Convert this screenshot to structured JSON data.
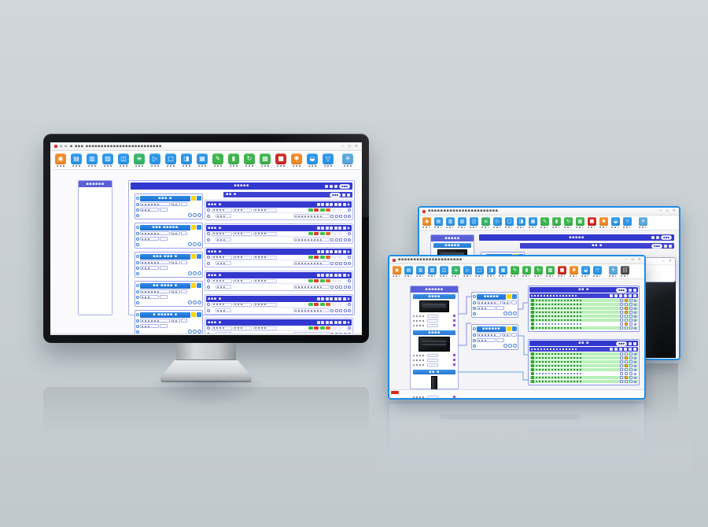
{
  "ui": {
    "controls": [
      "─",
      "▫",
      "✕"
    ],
    "tiny_dots": "▪ ▪"
  },
  "colors": {
    "accent_blue": "#1d8ce8",
    "indigo_bar": "#3338cf",
    "card_blue": "#1f7fe0",
    "flag_yellow": "#ffd400",
    "row_green": "#b9f0b9",
    "status_red": "#d42818",
    "chip_colors": [
      "#43c04a",
      "#e0392a",
      "#43c04a",
      "#e8652a",
      "#ececf4",
      "#ececf4"
    ]
  },
  "monitor": {
    "title": "▪ ▪▪▪ ▪▪▪▪▪▪▪▪▪▪▪▪▪▪▪▪▪▪▪▪▪▪▪▪▪",
    "toolbar_icons": [
      {
        "c": "#f08b28",
        "g": "◉",
        "n": "user-icon"
      },
      {
        "c": "#2b96e8",
        "g": "▤",
        "n": "new-doc-icon"
      },
      {
        "c": "#2b96e8",
        "g": "▥",
        "n": "open-folder-icon"
      },
      {
        "c": "#2b96e8",
        "g": "▧",
        "n": "save-icon"
      },
      {
        "c": "#2b96e8",
        "g": "◫",
        "n": "copy-icon"
      },
      {
        "c": "#35b56a",
        "g": "≡",
        "n": "list-icon"
      },
      {
        "c": "#2b96e8",
        "g": "▷",
        "n": "run-icon"
      },
      {
        "c": "#2b96e8",
        "g": "□",
        "n": "stop-icon"
      },
      {
        "c": "#2b96e8",
        "g": "◨",
        "n": "panel-icon"
      },
      {
        "c": "#2b96e8",
        "g": "▦",
        "n": "grid-icon"
      },
      {
        "c": "#3cb54a",
        "g": "✎",
        "n": "edit-icon"
      },
      {
        "c": "#3cb54a",
        "g": "▮",
        "n": "insert-icon"
      },
      {
        "c": "#3cb54a",
        "g": "↻",
        "n": "refresh-icon"
      },
      {
        "c": "#3cb54a",
        "g": "▩",
        "n": "table-icon"
      },
      {
        "c": "#cc2a22",
        "g": "■",
        "n": "record-icon"
      },
      {
        "c": "#f08b28",
        "g": "✱",
        "n": "settings-icon"
      },
      {
        "c": "#2b96e8",
        "g": "◒",
        "n": "view-icon"
      },
      {
        "c": "#2b96e8",
        "g": "▽",
        "n": "download-icon"
      },
      {
        "c": "#5aa8dc",
        "g": "✳",
        "n": "snowflake-icon",
        "gap": true
      }
    ],
    "left_panel_title": "▪▪▪▪▪▪",
    "main_title": "▪▪▪▪▪",
    "main_pill": "▪▪▪",
    "sub_title": "▪▪ ▪",
    "sub_pill": "▪▪▪",
    "cards": [
      {
        "title": "▪▪▪ ▪"
      },
      {
        "title": "▪▪▪ ▪▪▪▪▪"
      },
      {
        "title": "▪▪▪ ▪▪▪ ▪"
      },
      {
        "title": "▪▪ ▪▪▪▪ ▪"
      },
      {
        "title": "▪ ▪▪▪▪▪ ▪"
      }
    ],
    "blocks": [
      {
        "title": "▪▪▪ ▪"
      },
      {
        "title": "▪▪▪ ▪"
      },
      {
        "title": "▪▪▪ ▪"
      },
      {
        "title": "▪▪▪ ▪"
      },
      {
        "title": "▪▪▪ ▪"
      },
      {
        "title": "▪▪▪ ▪"
      }
    ]
  },
  "front_window": {
    "title": "▪▪▪▪▪▪▪▪▪▪▪▪▪▪▪▪▪▪▪▪▪",
    "sidebar_title": "▪▪▪▪▪▪",
    "sections": [
      {
        "title": "▪▪▪▪",
        "type": "screen",
        "rows": 3
      },
      {
        "title": "▪▪▪▪",
        "type": "box",
        "rows": 3
      },
      {
        "title": "▪▪ ▪",
        "type": "stick",
        "rows": 4
      }
    ],
    "cards": [
      {
        "title": "▪▪▪▪▪"
      },
      {
        "title": "▪▪▪▪▪▪"
      }
    ],
    "tables": [
      {
        "title": "▪▪ ▪",
        "pill": "▪▪▪",
        "rows": [
          {
            "w": false,
            "o": true
          },
          {
            "w": false,
            "o": false
          },
          {
            "w": false,
            "o": true
          },
          {
            "w": false,
            "o": true
          },
          {
            "w": false,
            "o": false
          },
          {
            "w": false,
            "o": false
          },
          {
            "w": true,
            "o": true
          },
          {
            "w": false,
            "o": false
          }
        ]
      },
      {
        "title": "▪▪ ▪",
        "pill": "▪▪▪",
        "rows": [
          {
            "w": false,
            "o": false
          },
          {
            "w": false,
            "o": true
          },
          {
            "w": false,
            "o": false
          },
          {
            "w": false,
            "o": true
          },
          {
            "w": false,
            "o": false
          },
          {
            "w": true,
            "o": false
          },
          {
            "w": false,
            "o": true
          },
          {
            "w": false,
            "o": false
          }
        ]
      }
    ]
  },
  "back_window": {
    "title": "▪▪▪▪▪▪▪▪▪▪▪▪▪▪▪▪▪▪▪▪▪▪▪",
    "sidebar_title": "▪▪▪▪▪",
    "bar1_title": "▪▪▪▪▪",
    "bar1_pill": "▪▪▪",
    "bar2_title": "▪▪ ▪",
    "bar2_pill": "▪▪▪",
    "cards": [
      {
        "title": "▪▪▪▪"
      }
    ],
    "popup": {
      "title": "▪ ▪▪▪▪",
      "icons": [
        true,
        true,
        true,
        false,
        false,
        false,
        false,
        false,
        false,
        false,
        false
      ]
    }
  }
}
